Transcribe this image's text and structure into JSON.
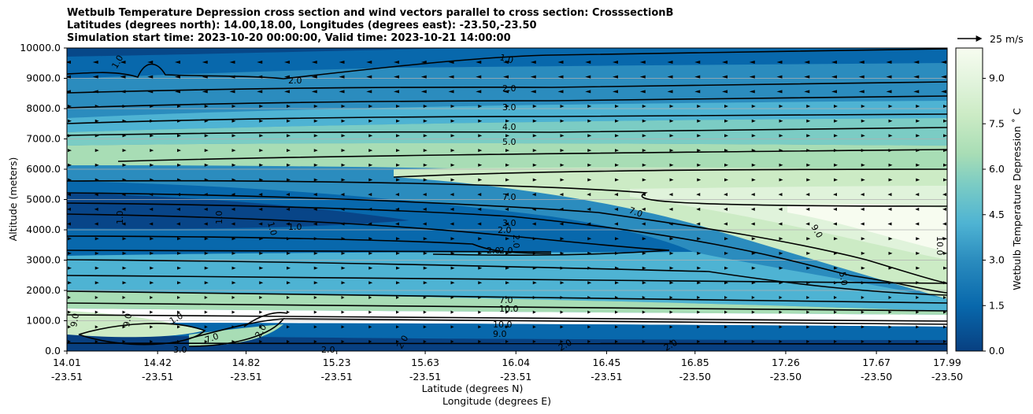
{
  "chart_data": {
    "type": "contour",
    "title_lines": [
      "Wetbulb Temperature Depression cross section and wind vectors parallel to cross section: CrosssectionB",
      "Latitudes (degrees north): 14.00,18.00, Longitudes (degrees east): -23.50,-23.50",
      "Simulation start time: 2023-10-20 00:00:00, Valid time: 2023-10-21 14:00:00"
    ],
    "xlabel": "Latitude (degrees N)",
    "xlabel2": "Longitude (degrees E)",
    "ylabel": "Altitude (meters)",
    "x_ticks": [
      {
        "lat": "14.01",
        "lon": "-23.51"
      },
      {
        "lat": "14.42",
        "lon": "-23.51"
      },
      {
        "lat": "14.82",
        "lon": "-23.51"
      },
      {
        "lat": "15.23",
        "lon": "-23.51"
      },
      {
        "lat": "15.63",
        "lon": "-23.51"
      },
      {
        "lat": "16.04",
        "lon": "-23.51"
      },
      {
        "lat": "16.45",
        "lon": "-23.51"
      },
      {
        "lat": "16.85",
        "lon": "-23.50"
      },
      {
        "lat": "17.26",
        "lon": "-23.50"
      },
      {
        "lat": "17.67",
        "lon": "-23.50"
      },
      {
        "lat": "17.99",
        "lon": "-23.50"
      }
    ],
    "y_ticks": [
      "0.0",
      "1000.0",
      "2000.0",
      "3000.0",
      "4000.0",
      "5000.0",
      "6000.0",
      "7000.0",
      "8000.0",
      "9000.0",
      "10000.0"
    ],
    "ylim": [
      0,
      10000
    ],
    "grid": "horizontal",
    "colorbar": {
      "label": "Wetbulb Temperature Depression ˚ C",
      "range": [
        0,
        10
      ],
      "ticks": [
        "0.0",
        "1.5",
        "3.0",
        "4.5",
        "6.0",
        "7.5",
        "9.0"
      ],
      "colors": [
        "#084081",
        "#0868ac",
        "#2b8cbe",
        "#4eb3d3",
        "#7bccc4",
        "#a8ddb5",
        "#ccebc5",
        "#e0f3db",
        "#f7fcf0"
      ]
    },
    "wind_key": {
      "label": "25 m/s"
    },
    "contour_lines": [
      {
        "value": 1.0,
        "altitude_m": 9600
      },
      {
        "value": 2.0,
        "altitude_m": 8900
      },
      {
        "value": 3.0,
        "altitude_m": 8000
      },
      {
        "value": 4.0,
        "altitude_m": 7400
      },
      {
        "value": 5.0,
        "altitude_m": 6900
      },
      {
        "value": 7.0,
        "altitude_m": 5100
      },
      {
        "value": 7.0,
        "altitude_m": 4800
      },
      {
        "value": 9.0,
        "altitude_m": 4000
      },
      {
        "value": 10.0,
        "altitude_m": 3600
      },
      {
        "value": 3.0,
        "altitude_m": 4200
      },
      {
        "value": 2.0,
        "altitude_m": 4000
      },
      {
        "value": 2.0,
        "altitude_m": 3300
      },
      {
        "value": 1.0,
        "altitude_m": 4000
      },
      {
        "value": 5.0,
        "altitude_m": 2400
      },
      {
        "value": 7.0,
        "altitude_m": 1500
      },
      {
        "value": 10.0,
        "altitude_m": 1400
      },
      {
        "value": 10.0,
        "altitude_m": 900
      },
      {
        "value": 9.0,
        "altitude_m": 700
      },
      {
        "value": 2.0,
        "altitude_m": 100
      }
    ]
  }
}
